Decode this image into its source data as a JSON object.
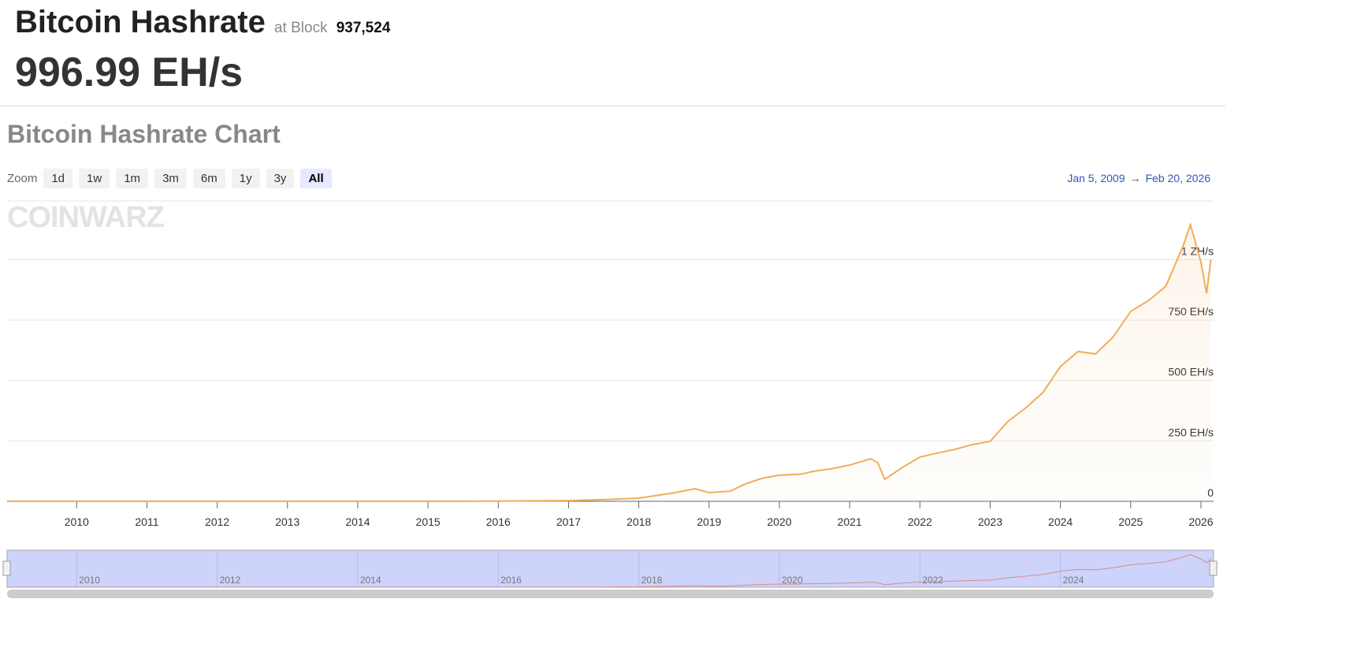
{
  "header": {
    "title": "Bitcoin Hashrate",
    "at_block_label": "at Block",
    "block": "937,524",
    "value": "996.99 EH/s"
  },
  "chart_data": {
    "type": "line",
    "title": "Bitcoin Hashrate Chart",
    "watermark": "COINWARZ",
    "zoom_label": "Zoom",
    "zoom_buttons": [
      "1d",
      "1w",
      "1m",
      "3m",
      "6m",
      "1y",
      "3y",
      "All"
    ],
    "zoom_selected": 7,
    "date_range": {
      "from": "Jan 5, 2009",
      "arrow": "→",
      "to": "Feb 20, 2026"
    },
    "x": [
      2009.01,
      2010,
      2011,
      2012,
      2013,
      2014,
      2015,
      2016,
      2017,
      2017.5,
      2018,
      2018.5,
      2018.8,
      2019,
      2019.3,
      2019.5,
      2019.75,
      2020,
      2020.3,
      2020.5,
      2020.75,
      2021,
      2021.3,
      2021.4,
      2021.5,
      2021.75,
      2022,
      2022.25,
      2022.5,
      2022.75,
      2023,
      2023.25,
      2023.5,
      2023.75,
      2024,
      2024.25,
      2024.5,
      2024.75,
      2025,
      2025.25,
      2025.5,
      2025.75,
      2025.85,
      2026,
      2026.08,
      2026.14
    ],
    "series": [
      {
        "name": "Hashrate",
        "color": "#f0ad5a",
        "values": [
          0,
          0,
          0,
          0,
          0,
          0,
          0,
          1,
          3,
          7,
          13,
          35,
          52,
          36,
          42,
          70,
          95,
          108,
          112,
          125,
          135,
          150,
          176,
          160,
          91,
          140,
          183,
          200,
          215,
          235,
          248,
          330,
          385,
          450,
          558,
          620,
          610,
          680,
          786,
          830,
          890,
          1060,
          1145,
          990,
          861,
          1000
        ]
      }
    ],
    "xlim": [
      2009.01,
      2026.18
    ],
    "xticks": [
      2010,
      2011,
      2012,
      2013,
      2014,
      2015,
      2016,
      2017,
      2018,
      2019,
      2020,
      2021,
      2022,
      2023,
      2024,
      2025,
      2026
    ],
    "ylim": [
      0,
      1243
    ],
    "yticks": [
      0,
      {
        "value": 250,
        "label": "250 EH/s"
      },
      {
        "value": 500,
        "label": "500 EH/s"
      },
      {
        "value": 750,
        "label": "750 EH/s"
      },
      {
        "value": 1000,
        "label": "1 ZH/s"
      }
    ],
    "grid": true,
    "navigator_xticks": [
      2010,
      2012,
      2014,
      2016,
      2018,
      2020,
      2022,
      2024
    ]
  }
}
